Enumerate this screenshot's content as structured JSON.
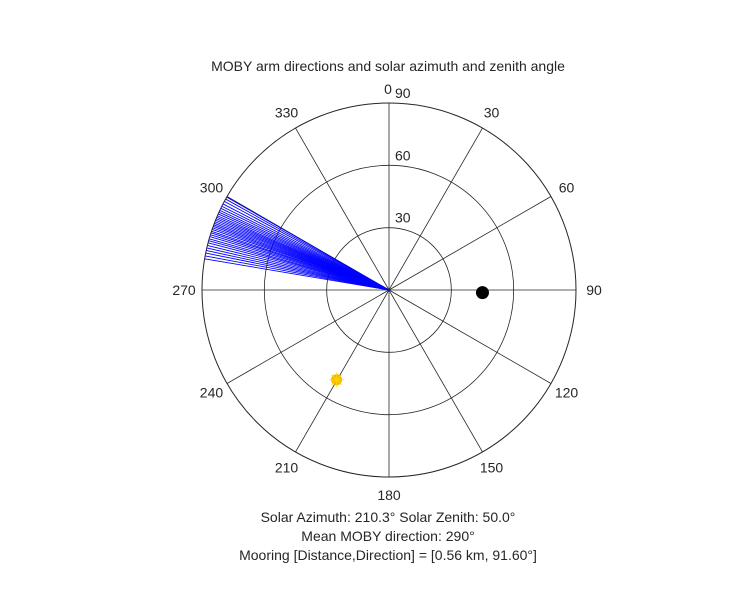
{
  "chart_data": {
    "type": "scatter",
    "coordinate_system": "polar",
    "title": "MOBY arm directions and solar azimuth and zenith angle",
    "theta_ticks": [
      "0",
      "30",
      "60",
      "90",
      "120",
      "150",
      "180",
      "210",
      "240",
      "270",
      "300",
      "330"
    ],
    "r_ticks": [
      "30",
      "60",
      "90"
    ],
    "rlim": [
      0,
      90
    ],
    "theta_zero": "top",
    "theta_direction": "clockwise",
    "grid": true,
    "arm_directions_deg": [
      279.6,
      280.5,
      281.4,
      282.2,
      283.0,
      283.8,
      284.6,
      285.3,
      285.9,
      286.6,
      287.2,
      287.8,
      288.3,
      288.9,
      289.4,
      289.9,
      290.4,
      290.9,
      291.4,
      291.9,
      292.4,
      292.9,
      293.4,
      294.0,
      294.6,
      295.2,
      295.9,
      296.6,
      297.4,
      298.3,
      299.1,
      299.8
    ],
    "arm_length": 90,
    "arm_color": "#0000ff",
    "sun": {
      "azimuth": 210.3,
      "zenith": 50.0,
      "color": "#f5b800",
      "spoke_color": "#ffd700"
    },
    "mooring": {
      "direction": 91.6,
      "r": 45,
      "color": "#000000"
    },
    "captions": [
      "Solar Azimuth: 210.3°   Solar Zenith: 50.0°",
      "Mean MOBY direction: 290°",
      "Mooring [Distance,Direction] = [0.56 km, 91.60°]"
    ]
  }
}
